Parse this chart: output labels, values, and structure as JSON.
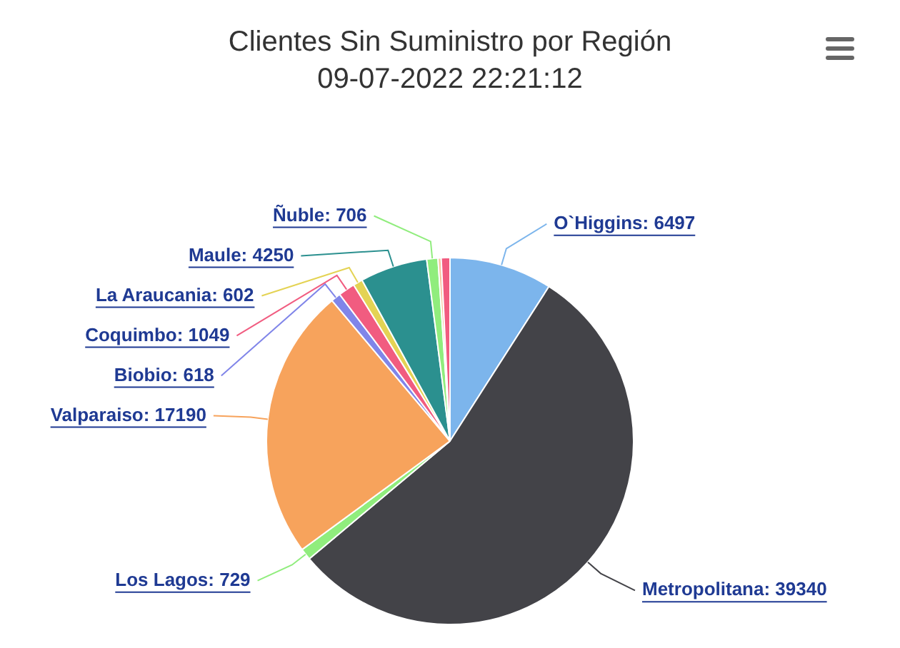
{
  "chart_data": {
    "type": "pie",
    "title": "Clientes Sin Suministro por Región",
    "subtitle": "09-07-2022 22:21:12",
    "categories": [
      "O`Higgins",
      "Metropolitana",
      "Los Lagos",
      "Valparaiso",
      "Biobio",
      "Coquimbo",
      "La Araucania",
      "Maule",
      "Ñuble",
      null,
      null
    ],
    "values": [
      6497,
      39340,
      729,
      17190,
      618,
      1049,
      602,
      4250,
      706,
      200,
      550
    ],
    "value_labels": [
      "6497",
      "39340",
      "729",
      "17190",
      "618",
      "1049",
      "602",
      "4250",
      "706",
      null,
      null
    ],
    "colors": [
      "#7cb5ec",
      "#434348",
      "#90ed7d",
      "#f7a35c",
      "#8085e9",
      "#f15c80",
      "#e4d354",
      "#2b908f",
      "#90ed7d",
      "#f7c39c",
      "#f15c80"
    ],
    "legend": false
  }
}
